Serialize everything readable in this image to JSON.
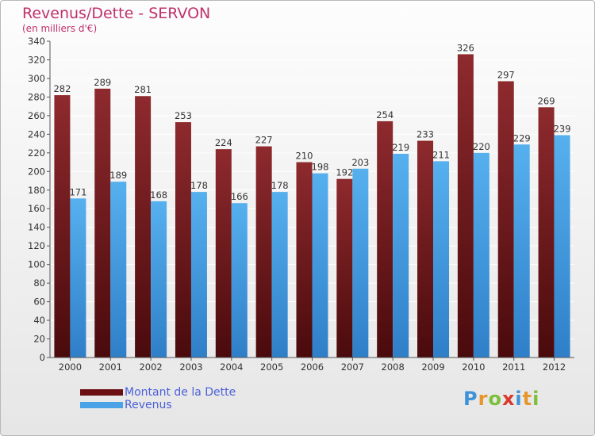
{
  "chart_data": {
    "type": "bar",
    "title": "Revenus/Dette - SERVON",
    "subtitle": "(en milliers d'€)",
    "categories": [
      "2000",
      "2001",
      "2002",
      "2003",
      "2004",
      "2005",
      "2006",
      "2007",
      "2008",
      "2009",
      "2010",
      "2011",
      "2012"
    ],
    "series": [
      {
        "name": "Montant de la Dette",
        "color": "#7a1c20",
        "values": [
          282,
          289,
          281,
          253,
          224,
          227,
          210,
          192,
          254,
          233,
          326,
          297,
          269
        ]
      },
      {
        "name": "Revenus",
        "color": "#4aa3e6",
        "values": [
          171,
          189,
          168,
          178,
          166,
          178,
          198,
          203,
          219,
          211,
          220,
          229,
          239
        ]
      }
    ],
    "ylim": [
      0,
      340
    ],
    "yticks": [
      0,
      20,
      40,
      60,
      80,
      100,
      120,
      140,
      160,
      180,
      200,
      220,
      240,
      260,
      280,
      300,
      320,
      340
    ],
    "grid": true,
    "legend_position": "bottom-left"
  },
  "brand": {
    "p": "P",
    "r": "r",
    "o": "o",
    "x": "x",
    "i": "i",
    "t": "t",
    "i2": "i"
  }
}
